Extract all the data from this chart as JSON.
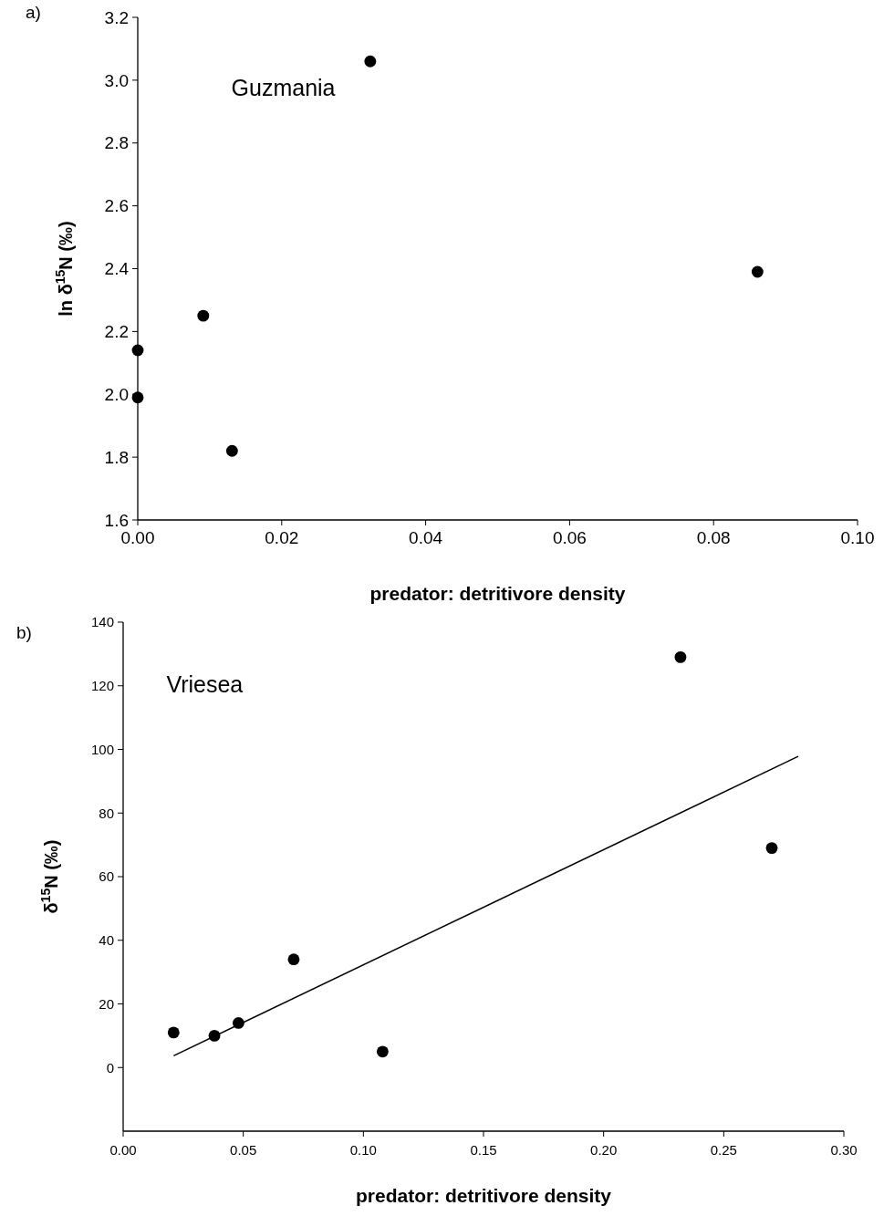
{
  "chart_data": [
    {
      "type": "scatter",
      "xlabel": "predator: detritivore density",
      "ylabel": "ln δ$^{15}$N (‰)",
      "annotations": [
        "a)",
        "Guzmania"
      ],
      "xlim": [
        0,
        0.1
      ],
      "ylim": [
        1.6,
        3.2
      ],
      "xticks": [
        {
          "value": 0,
          "label": "0.00"
        },
        {
          "value": 0.02,
          "label": "0.02"
        },
        {
          "value": 0.04,
          "label": "0.04"
        },
        {
          "value": 0.06,
          "label": "0.06"
        },
        {
          "value": 0.08,
          "label": "0.08"
        },
        {
          "value": 0.1,
          "label": "0.10"
        }
      ],
      "yticks": [
        1.6,
        1.8,
        {
          "value": 2,
          "label": "2.0"
        },
        2.2,
        2.4,
        2.6,
        2.8,
        {
          "value": 3,
          "label": "3.0"
        },
        3.2
      ],
      "grid": false,
      "marker": "circle",
      "x": [
        0,
        0,
        0.0091,
        0.0131,
        0.0323,
        0.0861
      ],
      "series": [
        {
          "color": "#000000",
          "values": [
            2.14,
            1.99,
            2.25,
            1.82,
            3.06,
            2.39
          ]
        }
      ]
    },
    {
      "type": "scatter",
      "xlabel": "predator: detritivore density",
      "ylabel": "δ$^{15}$N (‰)",
      "annotations": [
        "b)",
        "Vriesea"
      ],
      "xlim": [
        0,
        0.3
      ],
      "ylim": [
        -20,
        140
      ],
      "xticks": [
        {
          "value": 0,
          "label": "0.00"
        },
        {
          "value": 0.05,
          "label": "0.05"
        },
        {
          "value": 0.1,
          "label": "0.10"
        },
        {
          "value": 0.15,
          "label": "0.15"
        },
        {
          "value": 0.2,
          "label": "0.20"
        },
        {
          "value": 0.25,
          "label": "0.25"
        },
        {
          "value": 0.3,
          "label": "0.30"
        }
      ],
      "yticks": [
        0,
        20,
        40,
        60,
        80,
        100,
        120,
        140
      ],
      "grid": false,
      "marker": "circle",
      "x": [
        0.021,
        0.038,
        0.048,
        0.071,
        0.108,
        0.232,
        0.27
      ],
      "series": [
        {
          "color": "#000000",
          "values": [
            11,
            10,
            14,
            34,
            5,
            129,
            69
          ]
        },
        {
          "type": "line",
          "marker": "none",
          "color": "#000000",
          "x": [
            0.021,
            0.281
          ],
          "values": [
            3.7,
            97.8
          ]
        }
      ]
    }
  ]
}
